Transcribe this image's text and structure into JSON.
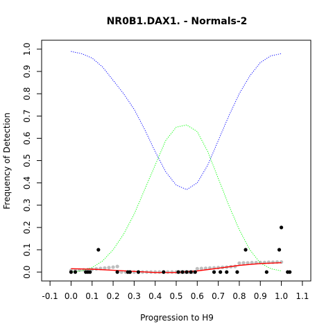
{
  "chart_data": {
    "type": "scatter",
    "title": "NR0B1.DAX1. - Normals-2",
    "xlabel": "Progression to H9",
    "ylabel": "Frequency of Detection",
    "xlim": [
      -0.14,
      1.14
    ],
    "ylim": [
      -0.04,
      1.04
    ],
    "x_ticks": [
      "-0.1",
      "0.0",
      "0.1",
      "0.2",
      "0.3",
      "0.4",
      "0.5",
      "0.6",
      "0.7",
      "0.8",
      "0.9",
      "1.0",
      "1.1"
    ],
    "y_ticks": [
      "0.0",
      "0.1",
      "0.2",
      "0.3",
      "0.4",
      "0.5",
      "0.6",
      "0.7",
      "0.8",
      "0.9",
      "1.0"
    ],
    "grid": false,
    "legend": "none",
    "colors": {
      "points": "#000000",
      "smoothed_points": "#bebebe",
      "fit_line": "#ff0000",
      "blue_curve": "#0000ff",
      "green_curve": "#00ff00"
    },
    "series": [
      {
        "style": "points",
        "color": "#000000",
        "x": [
          0.0,
          0.02,
          0.07,
          0.08,
          0.09,
          0.13,
          0.22,
          0.27,
          0.28,
          0.32,
          0.44,
          0.51,
          0.53,
          0.55,
          0.57,
          0.59,
          0.68,
          0.71,
          0.74,
          0.79,
          0.83,
          0.93,
          0.99,
          1.0,
          1.03,
          1.04
        ],
        "y": [
          0.0,
          0.0,
          0.0,
          0.0,
          0.0,
          0.1,
          0.0,
          0.0,
          0.0,
          0.0,
          0.0,
          0.0,
          0.0,
          0.0,
          0.0,
          0.0,
          0.0,
          0.0,
          0.0,
          0.0,
          0.1,
          0.0,
          0.1,
          0.2,
          0.0,
          0.0
        ]
      },
      {
        "style": "smoothed",
        "color": "#bebebe",
        "x": [
          0.0,
          0.02,
          0.04,
          0.06,
          0.08,
          0.1,
          0.12,
          0.14,
          0.16,
          0.18,
          0.2,
          0.22,
          0.24,
          0.26,
          0.28,
          0.3,
          0.32,
          0.34,
          0.36,
          0.38,
          0.4,
          0.42,
          0.44,
          0.46,
          0.48,
          0.5,
          0.52,
          0.54,
          0.56,
          0.58,
          0.6,
          0.62,
          0.64,
          0.66,
          0.68,
          0.7,
          0.72,
          0.74,
          0.76,
          0.78,
          0.8,
          0.82,
          0.84,
          0.86,
          0.88,
          0.9,
          0.92,
          0.94,
          0.96,
          0.98,
          1.0
        ],
        "y": [
          0.008,
          0.008,
          0.009,
          0.01,
          0.011,
          0.012,
          0.014,
          0.016,
          0.018,
          0.02,
          0.022,
          0.025,
          0.0,
          0.0,
          0.0,
          0.0,
          0.0,
          0.0,
          0.0,
          0.0,
          0.0,
          0.0,
          0.0,
          0.0,
          0.0,
          0.0,
          0.0,
          0.0,
          0.0,
          0.0,
          0.015,
          0.016,
          0.017,
          0.018,
          0.019,
          0.02,
          0.021,
          0.022,
          0.024,
          0.025,
          0.04,
          0.041,
          0.041,
          0.042,
          0.042,
          0.043,
          0.043,
          0.044,
          0.044,
          0.045,
          0.045
        ]
      },
      {
        "style": "line",
        "color": "#ff0000",
        "x": [
          0.0,
          0.1,
          0.2,
          0.3,
          0.4,
          0.5,
          0.6,
          0.7,
          0.8,
          0.9,
          1.0
        ],
        "y": [
          0.015,
          0.013,
          0.008,
          0.003,
          -0.002,
          -0.002,
          0.005,
          0.017,
          0.03,
          0.038,
          0.042
        ]
      },
      {
        "style": "dotted",
        "color": "#0000ff",
        "x": [
          0.0,
          0.05,
          0.1,
          0.15,
          0.2,
          0.25,
          0.3,
          0.35,
          0.4,
          0.45,
          0.5,
          0.55,
          0.6,
          0.65,
          0.7,
          0.75,
          0.8,
          0.85,
          0.9,
          0.95,
          1.0
        ],
        "y": [
          0.99,
          0.98,
          0.96,
          0.92,
          0.86,
          0.8,
          0.73,
          0.64,
          0.54,
          0.45,
          0.39,
          0.37,
          0.4,
          0.48,
          0.59,
          0.7,
          0.8,
          0.88,
          0.94,
          0.97,
          0.98
        ]
      },
      {
        "style": "dotted",
        "color": "#00ff00",
        "x": [
          0.0,
          0.05,
          0.1,
          0.15,
          0.2,
          0.25,
          0.3,
          0.35,
          0.4,
          0.45,
          0.5,
          0.55,
          0.6,
          0.65,
          0.7,
          0.75,
          0.8,
          0.85,
          0.9,
          0.95,
          1.0
        ],
        "y": [
          0.0,
          0.005,
          0.02,
          0.05,
          0.1,
          0.17,
          0.26,
          0.37,
          0.48,
          0.59,
          0.65,
          0.66,
          0.63,
          0.54,
          0.42,
          0.3,
          0.19,
          0.1,
          0.04,
          0.015,
          0.005
        ]
      }
    ]
  }
}
